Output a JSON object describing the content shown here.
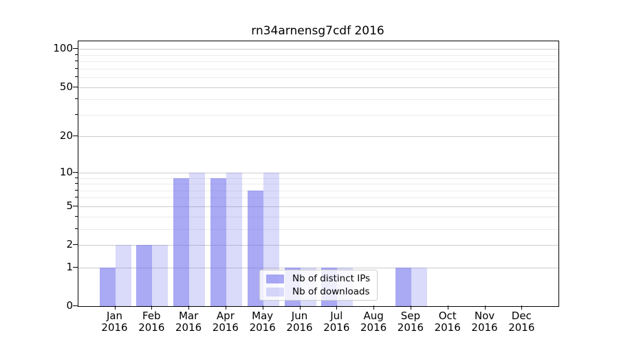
{
  "chart_data": {
    "type": "bar",
    "title": "rn34arnensg7cdf 2016",
    "categories": [
      "Jan",
      "Feb",
      "Mar",
      "Apr",
      "May",
      "Jun",
      "Jul",
      "Aug",
      "Sep",
      "Oct",
      "Nov",
      "Dec"
    ],
    "x_tick_year": "2016",
    "series": [
      {
        "key": "distinct-ips",
        "name": "Nb of distinct IPs",
        "color": "rgba(102,102,235,0.56)",
        "values": [
          1,
          2,
          9,
          9,
          7,
          1,
          1,
          0,
          1,
          0,
          0,
          0
        ]
      },
      {
        "key": "downloads",
        "name": "Nb of downloads",
        "color": "rgba(102,102,235,0.24)",
        "values": [
          2,
          2,
          10,
          10,
          10,
          1,
          1,
          0,
          1,
          0,
          0,
          0
        ]
      }
    ],
    "y_axis": {
      "scale": "log1p",
      "major_ticks": [
        0,
        1,
        2,
        5,
        10,
        20,
        50,
        100
      ],
      "minor_ticks": [
        3,
        4,
        6,
        7,
        8,
        9,
        30,
        40,
        60,
        70,
        80,
        90
      ],
      "range": [
        0,
        115
      ]
    },
    "legend": {
      "position": "lower center"
    },
    "grid": "both",
    "colors": {
      "major_grid": "#cccccc",
      "minor_grid": "#ebebeb",
      "axis": "#000000",
      "text": "#000000",
      "figure_background": "#ffffff",
      "legend_border": "#cccccc"
    }
  }
}
